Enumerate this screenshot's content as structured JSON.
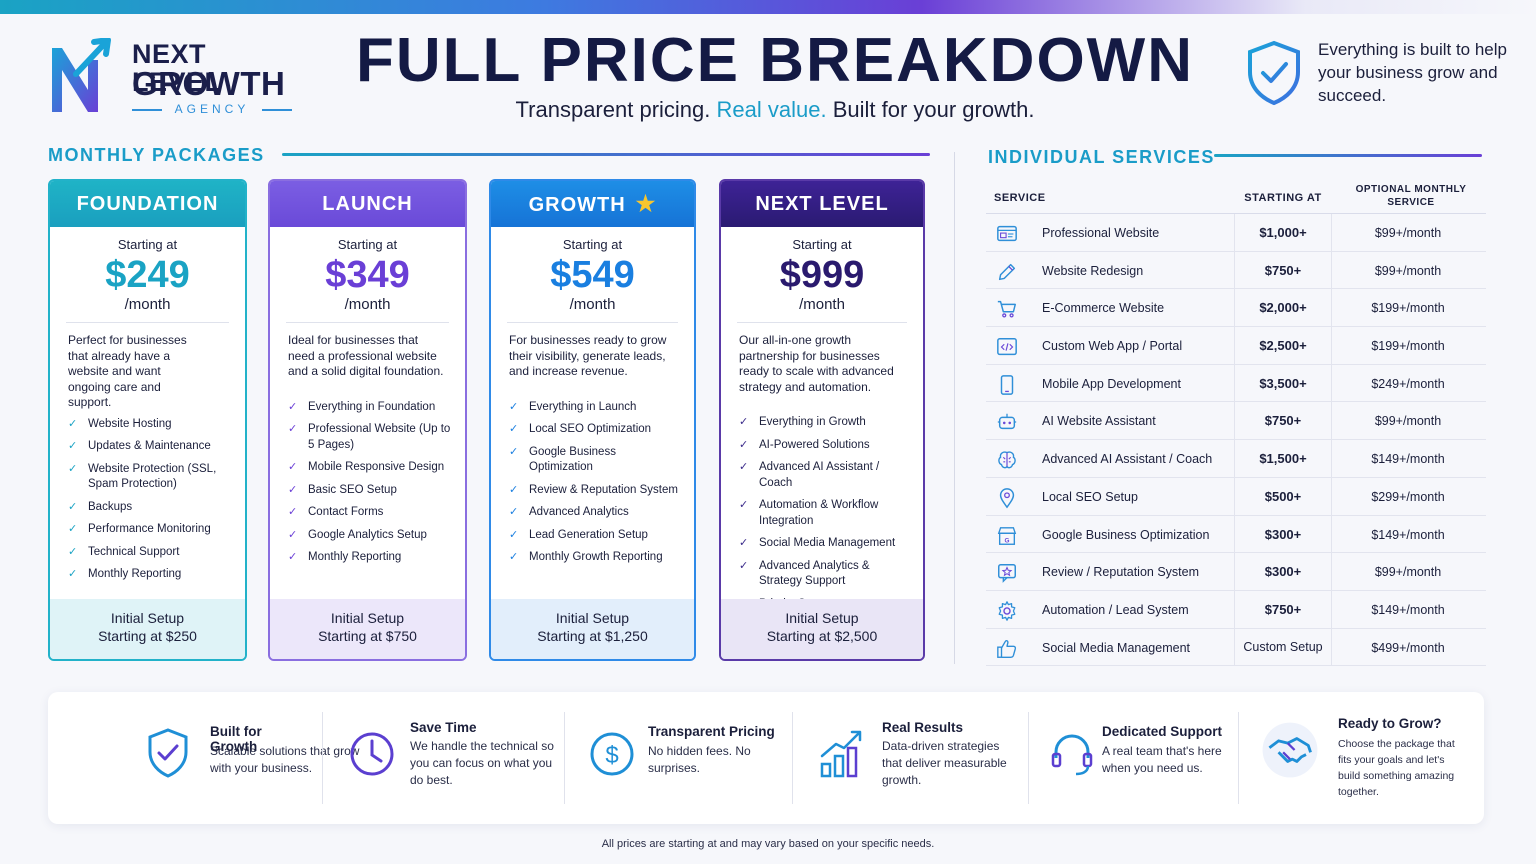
{
  "brand": {
    "line1": "NEXT LEVEL",
    "line2": "GROWTH",
    "line3": "AGENCY"
  },
  "header": {
    "title": "FULL PRICE BREAKDOWN",
    "subtitle_a": "Transparent pricing. ",
    "subtitle_b": "Real value.",
    "subtitle_c": " Built for your growth.",
    "tagline": "Everything is built to help your business grow and succeed."
  },
  "colors": {
    "teal": "#1aa3c4",
    "purple": "#6a3fd6",
    "blue": "#1f7fe0",
    "navy": "#3a1f8a"
  },
  "packages_section": {
    "title": "MONTHLY PACKAGES"
  },
  "packages": [
    {
      "name": "FOUNDATION",
      "starting": "Starting at",
      "price": "$249",
      "per": "/month",
      "desc": "Perfect for businesses that already have a website and want ongoing care and support.",
      "features": [
        "Website Hosting",
        "Updates & Maintenance",
        "Website Protection (SSL, Spam Protection)",
        "Backups",
        "Performance Monitoring",
        "Technical Support",
        "Monthly Reporting"
      ],
      "setup_label": "Initial Setup",
      "setup_prefix": "Starting at",
      "setup_price": "$250"
    },
    {
      "name": "LAUNCH",
      "starting": "Starting at",
      "price": "$349",
      "per": "/month",
      "desc": "Ideal for businesses that need a professional website and a solid digital foundation.",
      "features": [
        "Everything in Foundation",
        "Professional Website (Up to 5 Pages)",
        "Mobile Responsive Design",
        "Basic SEO Setup",
        "Contact Forms",
        "Google Analytics Setup",
        "Monthly Reporting"
      ],
      "setup_label": "Initial Setup",
      "setup_prefix": "Starting at",
      "setup_price": "$750"
    },
    {
      "name": "GROWTH",
      "starting": "Starting at",
      "price": "$549",
      "per": "/month",
      "desc": "For businesses ready to grow their visibility, generate leads, and increase revenue.",
      "features": [
        "Everything in Launch",
        "Local SEO Optimization",
        "Google Business Optimization",
        "Review & Reputation System",
        "Advanced Analytics",
        "Lead Generation Setup",
        "Monthly Growth Reporting"
      ],
      "setup_label": "Initial Setup",
      "setup_prefix": "Starting at",
      "setup_price": "$1,250"
    },
    {
      "name": "NEXT LEVEL",
      "starting": "Starting at",
      "price": "$999",
      "per": "/month",
      "desc": "Our all-in-one growth partnership for businesses ready to scale with advanced strategy and automation.",
      "features": [
        "Everything in Growth",
        "AI-Powered Solutions",
        "Advanced AI Assistant / Coach",
        "Automation & Workflow Integration",
        "Social Media Management",
        "Advanced Analytics & Strategy Support",
        "Priority Support"
      ],
      "setup_label": "Initial Setup",
      "setup_prefix": "Starting at",
      "setup_price": "$2,500"
    }
  ],
  "services_section": {
    "title": "INDIVIDUAL SERVICES",
    "col_service": "SERVICE",
    "col_starting": "STARTING AT",
    "col_monthly": "OPTIONAL MONTHLY SERVICE"
  },
  "services": [
    {
      "icon": "website-icon",
      "name": "Professional Website",
      "price": "$1,000+",
      "monthly": "$99+/month"
    },
    {
      "icon": "pencil-icon",
      "name": "Website Redesign",
      "price": "$750+",
      "monthly": "$99+/month"
    },
    {
      "icon": "cart-icon",
      "name": "E-Commerce Website",
      "price": "$2,000+",
      "monthly": "$199+/month"
    },
    {
      "icon": "code-icon",
      "name": "Custom Web App / Portal",
      "price": "$2,500+",
      "monthly": "$199+/month"
    },
    {
      "icon": "phone-icon",
      "name": "Mobile App Development",
      "price": "$3,500+",
      "monthly": "$249+/month"
    },
    {
      "icon": "robot-icon",
      "name": "AI Website Assistant",
      "price": "$750+",
      "monthly": "$99+/month"
    },
    {
      "icon": "brain-icon",
      "name": "Advanced AI Assistant / Coach",
      "price": "$1,500+",
      "monthly": "$149+/month"
    },
    {
      "icon": "map-pin-icon",
      "name": "Local SEO Setup",
      "price": "$500+",
      "monthly": "$299+/month"
    },
    {
      "icon": "store-icon",
      "name": "Google Business Optimization",
      "price": "$300+",
      "monthly": "$149+/month"
    },
    {
      "icon": "review-star-icon",
      "name": "Review / Reputation System",
      "price": "$300+",
      "monthly": "$99+/month"
    },
    {
      "icon": "gear-icon",
      "name": "Automation / Lead System",
      "price": "$750+",
      "monthly": "$149+/month"
    },
    {
      "icon": "thumbs-up-icon",
      "name": "Social Media Management",
      "price": "Custom Setup",
      "monthly": "$499+/month"
    }
  ],
  "benefits": [
    {
      "icon": "shield-check-icon",
      "title": "Built for Growth",
      "desc": "Scalable solutions that grow with your business."
    },
    {
      "icon": "clock-icon",
      "title": "Save Time",
      "desc": "We handle the technical so you can focus on what you do best."
    },
    {
      "icon": "dollar-icon",
      "title": "Transparent Pricing",
      "desc": "No hidden fees. No surprises."
    },
    {
      "icon": "bar-chart-icon",
      "title": "Real Results",
      "desc": "Data-driven strategies that deliver measurable growth."
    },
    {
      "icon": "headset-icon",
      "title": "Dedicated Support",
      "desc": "A real team that's here when you need us."
    },
    {
      "icon": "handshake-icon",
      "title": "Ready to Grow?",
      "desc": "Choose the package that fits your goals and let's build something amazing together."
    }
  ],
  "footnote": "All prices are starting at and may vary based on your specific needs."
}
